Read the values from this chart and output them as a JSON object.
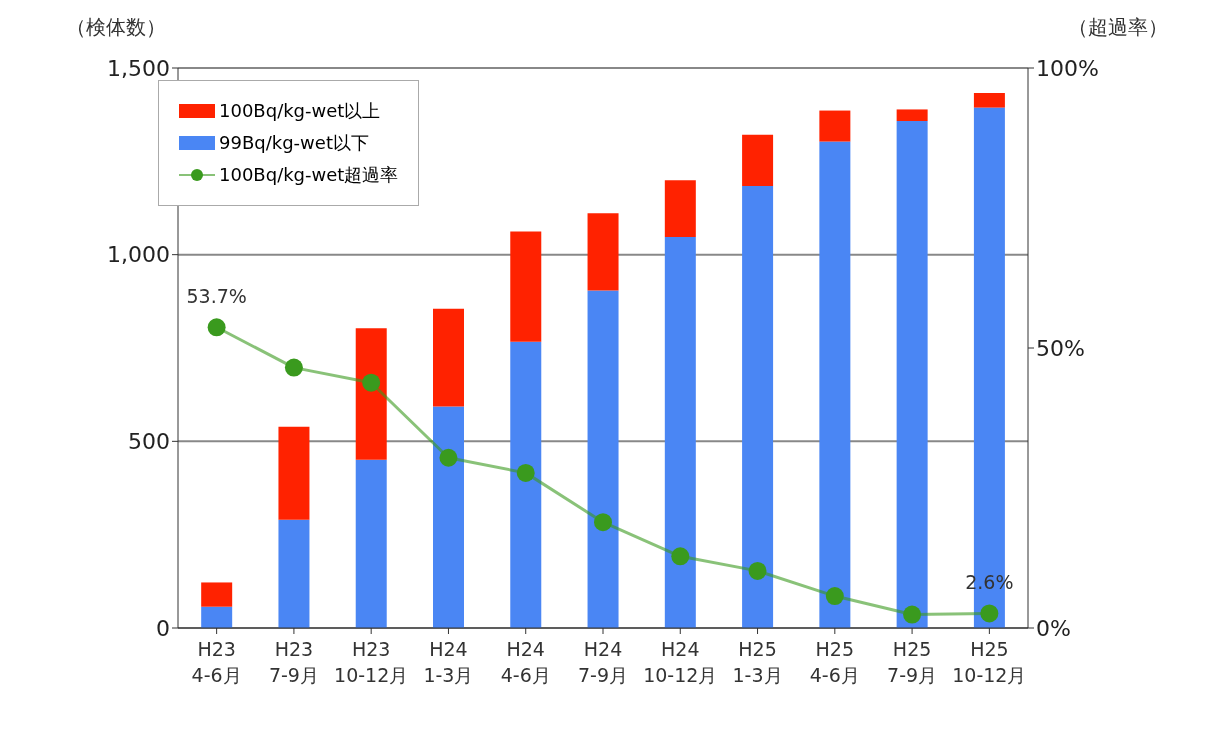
{
  "chart_data": {
    "type": "bar",
    "ylabel": "（検体数）",
    "y2label": "（超過率）",
    "categories": [
      "H23\n4-6月",
      "H23\n7-9月",
      "H23\n10-12月",
      "H24\n1-3月",
      "H24\n4-6月",
      "H24\n7-9月",
      "H24\n10-12月",
      "H25\n1-3月",
      "H25\n4-6月",
      "H25\n7-9月",
      "H25\n10-12月"
    ],
    "stacked": true,
    "series": [
      {
        "name": "99Bq/kg-wet以下",
        "color": "#4a86f4",
        "values": [
          57,
          290,
          451,
          593,
          767,
          904,
          1047,
          1184,
          1303,
          1358,
          1394
        ]
      },
      {
        "name": "100Bq/kg-wet以上",
        "color": "#ff2200",
        "values": [
          65,
          249,
          352,
          262,
          295,
          207,
          152,
          137,
          83,
          31,
          39
        ]
      },
      {
        "name": "100Bq/kg-wet超過率",
        "type": "line",
        "axis": "y2",
        "color": "#3a9a1e",
        "values": [
          53.7,
          46.5,
          43.8,
          30.4,
          27.7,
          18.9,
          12.8,
          10.2,
          5.7,
          2.4,
          2.6
        ],
        "value_labels": [
          "53.7%",
          null,
          null,
          null,
          null,
          null,
          null,
          null,
          null,
          null,
          "2.6%"
        ]
      }
    ],
    "ylim": [
      0,
      1500
    ],
    "yticks": [
      0,
      500,
      {
        "value": 1000,
        "label": "1,000"
      },
      {
        "value": 1500,
        "label": "1,500"
      }
    ],
    "y2lim": [
      0,
      100
    ],
    "y2ticks": [
      {
        "value": 0,
        "label": "0%"
      },
      {
        "value": 50,
        "label": "50%"
      },
      {
        "value": 100,
        "label": "100%"
      }
    ],
    "grid": "y",
    "legend": "top left",
    "marker": "circle"
  }
}
